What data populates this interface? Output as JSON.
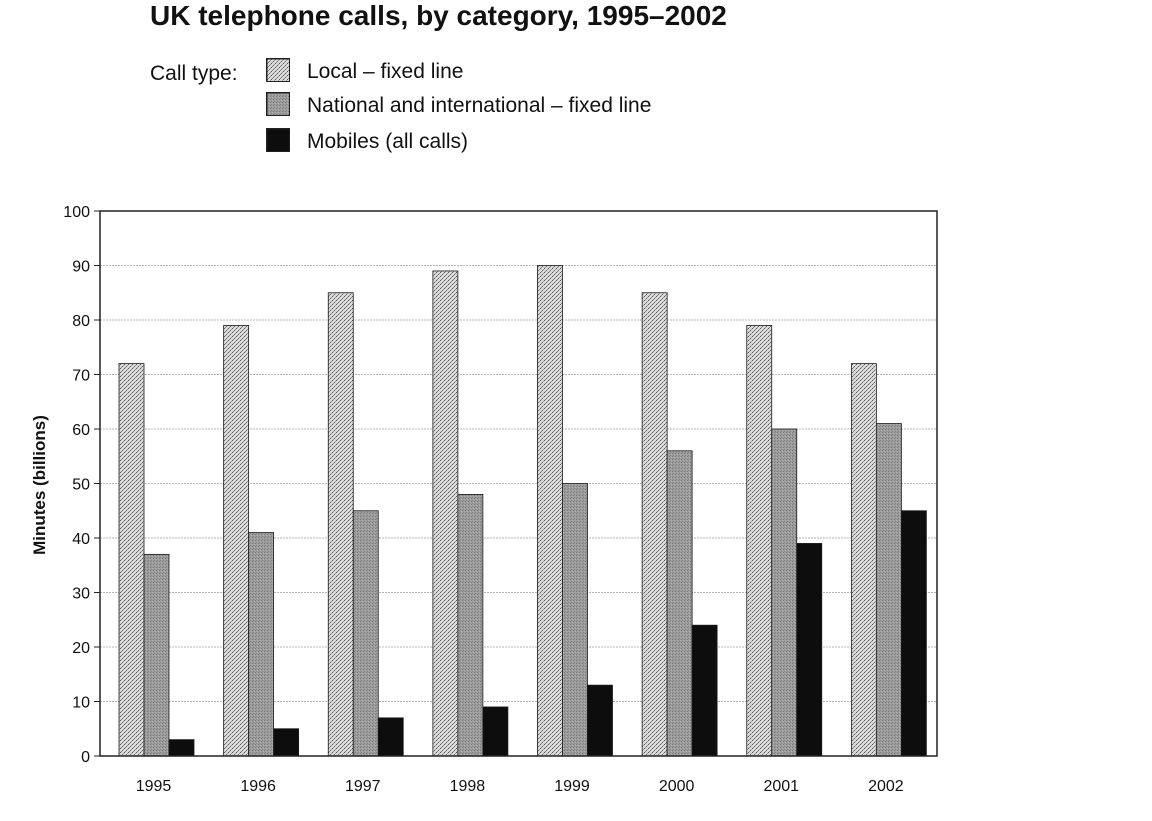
{
  "title": "UK telephone calls, by category, 1995–2002",
  "legend": {
    "caption": "Call type:",
    "items": [
      {
        "label": "Local – fixed line",
        "pattern": "dotted-light"
      },
      {
        "label": "National and international – fixed line",
        "pattern": "grey"
      },
      {
        "label": "Mobiles (all calls)",
        "pattern": "black"
      }
    ]
  },
  "chart_data": {
    "type": "bar",
    "title": "UK telephone calls, by category, 1995–2002",
    "xlabel": "",
    "ylabel": "Minutes (billions)",
    "ylim": [
      0,
      100
    ],
    "yticks": [
      0,
      10,
      20,
      30,
      40,
      50,
      60,
      70,
      80,
      90,
      100
    ],
    "grid": true,
    "legend_position": "top-left",
    "categories": [
      "1995",
      "1996",
      "1997",
      "1998",
      "1999",
      "2000",
      "2001",
      "2002"
    ],
    "series": [
      {
        "name": "Local – fixed line",
        "values": [
          72,
          79,
          85,
          89,
          90,
          85,
          79,
          72
        ],
        "color": "#cfcfcf"
      },
      {
        "name": "National and international – fixed line",
        "values": [
          37,
          41,
          45,
          48,
          50,
          56,
          60,
          61
        ],
        "color": "#9a9a9a"
      },
      {
        "name": "Mobiles (all calls)",
        "values": [
          3,
          5,
          7,
          9,
          13,
          24,
          39,
          45
        ],
        "color": "#0d0d0d"
      }
    ]
  }
}
